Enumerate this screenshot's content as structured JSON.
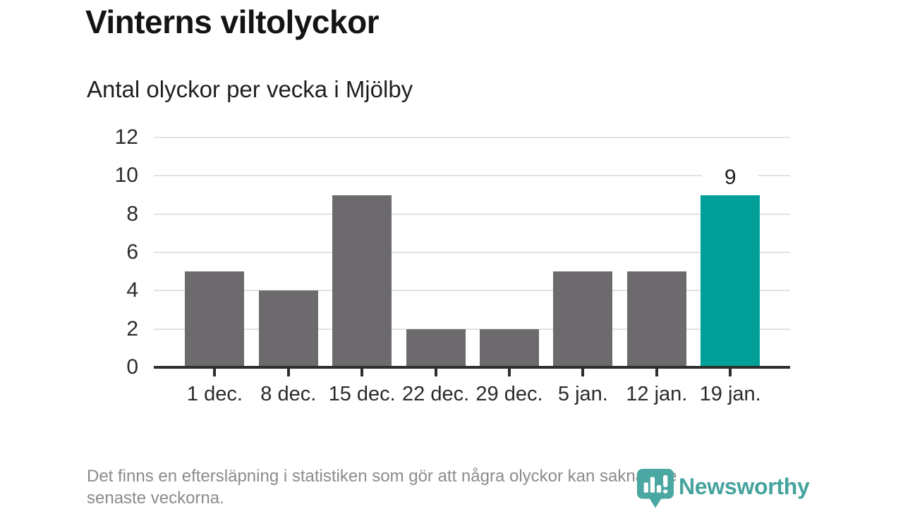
{
  "header": {
    "title": "Vinterns viltolyckor",
    "subtitle": "Antal olyckor per vecka i Mjölby"
  },
  "chart_data": {
    "type": "bar",
    "title": "Vinterns viltolyckor",
    "subtitle": "Antal olyckor per vecka i Mjölby",
    "categories": [
      "1 dec.",
      "8 dec.",
      "15 dec.",
      "22 dec.",
      "29 dec.",
      "5 jan.",
      "12 jan.",
      "19 jan."
    ],
    "values": [
      5,
      4,
      9,
      2,
      2,
      5,
      5,
      9
    ],
    "xlabel": "",
    "ylabel": "",
    "ylim": [
      0,
      12
    ],
    "yticks": [
      0,
      2,
      4,
      6,
      8,
      10,
      12
    ],
    "grid": true,
    "legend": "none",
    "highlight_index": 7,
    "value_labels": {
      "7": "9"
    },
    "colors": {
      "bar": "#6d6a6e",
      "highlight_bar": "#00a099",
      "gridline": "#e2e2e2",
      "axis": "#2e2e2e",
      "tick_text": "#2b2b2b"
    }
  },
  "footer": {
    "line1": "Det finns en eftersläpning i statistiken som gör att några olyckor kan saknas de",
    "line2": "senaste veckorna.",
    "logo_text": "Newsworthy",
    "logo_color": "#45a39d"
  }
}
